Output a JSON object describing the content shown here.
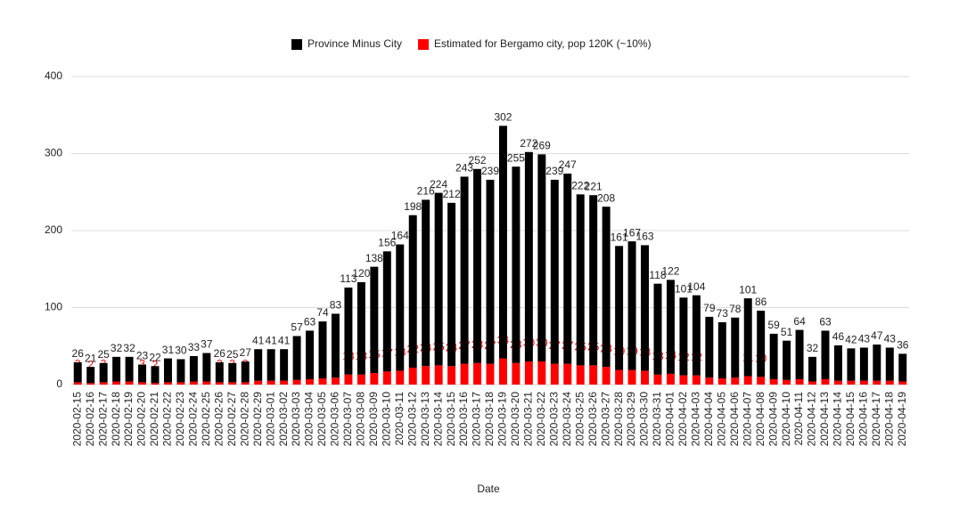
{
  "chart_data": {
    "type": "stacked_bar",
    "xlabel": "Date",
    "categories": [
      "2020-02-15",
      "2020-02-16",
      "2020-02-17",
      "2020-02-18",
      "2020-02-19",
      "2020-02-20",
      "2020-02-21",
      "2020-02-22",
      "2020-02-23",
      "2020-02-24",
      "2020-02-25",
      "2020-02-26",
      "2020-02-27",
      "2020-02-28",
      "2020-02-29",
      "2020-03-01",
      "2020-03-02",
      "2020-03-03",
      "2020-03-04",
      "2020-03-05",
      "2020-03-06",
      "2020-03-07",
      "2020-03-08",
      "2020-03-09",
      "2020-03-10",
      "2020-03-11",
      "2020-03-12",
      "2020-03-13",
      "2020-03-14",
      "2020-03-15",
      "2020-03-16",
      "2020-03-17",
      "2020-03-18",
      "2020-03-19",
      "2020-03-20",
      "2020-03-21",
      "2020-03-22",
      "2020-03-23",
      "2020-03-24",
      "2020-03-25",
      "2020-03-26",
      "2020-03-27",
      "2020-03-28",
      "2020-03-29",
      "2020-03-30",
      "2020-03-31",
      "2020-04-01",
      "2020-04-02",
      "2020-04-03",
      "2020-04-04",
      "2020-04-05",
      "2020-04-06",
      "2020-04-07",
      "2020-04-08",
      "2020-04-09",
      "2020-04-10",
      "2020-04-11",
      "2020-04-12",
      "2020-04-13",
      "2020-04-14",
      "2020-04-15",
      "2020-04-16",
      "2020-04-17",
      "2020-04-18",
      "2020-04-19"
    ],
    "series": [
      {
        "name": "Estimated for Bergamo city, pop 120K (~10%)",
        "color": "#ff0000",
        "values": [
          3,
          2,
          3,
          4,
          4,
          3,
          2,
          3,
          3,
          4,
          4,
          3,
          3,
          3,
          5,
          5,
          5,
          6,
          7,
          8,
          9,
          13,
          13,
          15,
          17,
          18,
          22,
          24,
          25,
          24,
          27,
          28,
          27,
          34,
          28,
          30,
          30,
          27,
          27,
          25,
          25,
          23,
          19,
          19,
          18,
          13,
          14,
          12,
          12,
          9,
          8,
          9,
          11,
          10,
          7,
          6,
          7,
          4,
          7,
          5,
          5,
          5,
          5,
          5,
          4
        ]
      },
      {
        "name": "Province Minus City",
        "color": "#000000",
        "values": [
          26,
          21,
          25,
          32,
          32,
          23,
          22,
          31,
          30,
          33,
          37,
          26,
          25,
          27,
          41,
          41,
          41,
          57,
          63,
          74,
          83,
          113,
          120,
          138,
          156,
          164,
          198,
          216,
          224,
          212,
          243,
          252,
          239,
          302,
          255,
          272,
          269,
          239,
          247,
          222,
          221,
          208,
          161,
          167,
          163,
          118,
          122,
          101,
          104,
          79,
          73,
          78,
          101,
          86,
          59,
          51,
          64,
          32,
          63,
          46,
          42,
          43,
          47,
          43,
          36
        ]
      }
    ],
    "ylim": [
      0,
      400
    ],
    "yticks": [
      0,
      100,
      200,
      300,
      400
    ],
    "grid": true
  }
}
